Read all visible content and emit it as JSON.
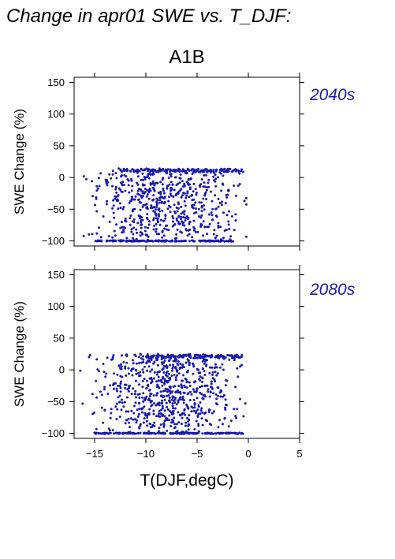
{
  "figure": {
    "title": "Change in apr01 SWE vs. T_DJF:",
    "scenario": "A1B"
  },
  "chart_data": [
    {
      "type": "scatter",
      "panel_label": "2040s",
      "ylabel": "SWE Change (%)",
      "xlabel": "T(DJF,degC)",
      "xlim": [
        -17,
        5
      ],
      "ylim": [
        -108,
        158
      ],
      "xticks": [
        -15,
        -10,
        -5,
        0,
        5
      ],
      "yticks": [
        -100,
        -50,
        0,
        50,
        100,
        150
      ],
      "color": "#1a1aaa",
      "generator": {
        "seed": 11,
        "n_scatter": 620,
        "n_floor": 170,
        "n_top": 140,
        "top_level": 10,
        "top_xmin": -12.5,
        "top_xmax": -0.5,
        "floor_xmin": -15,
        "floor_xmax": -1.5,
        "cap": 14,
        "xmin": -17,
        "xmax": -0.2
      }
    },
    {
      "type": "scatter",
      "panel_label": "2080s",
      "ylabel": "SWE Change (%)",
      "xlabel": "T(DJF,degC)",
      "xlim": [
        -17,
        5
      ],
      "ylim": [
        -108,
        158
      ],
      "xticks": [
        -15,
        -10,
        -5,
        0,
        5
      ],
      "yticks": [
        -100,
        -50,
        0,
        50,
        100,
        150
      ],
      "color": "#1a1aaa",
      "generator": {
        "seed": 29,
        "n_scatter": 720,
        "n_floor": 210,
        "n_top": 120,
        "top_level": 20,
        "top_xmin": -10,
        "top_xmax": -0.5,
        "floor_xmin": -15,
        "floor_xmax": -0.5,
        "cap": 27,
        "xmin": -17,
        "xmax": -0.2
      }
    }
  ]
}
